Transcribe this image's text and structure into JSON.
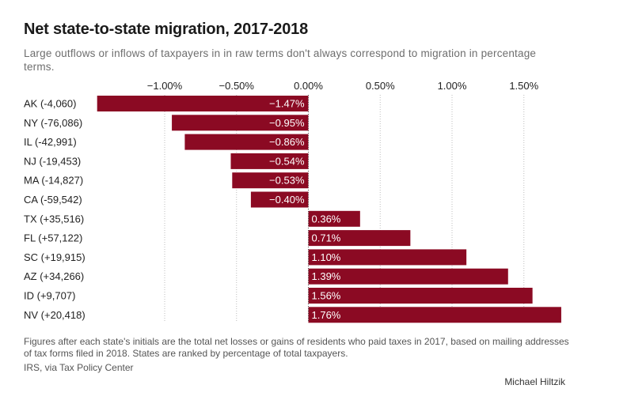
{
  "title": "Net state-to-state migration, 2017-2018",
  "subtitle": "Large outflows or inflows of taxpayers in in raw terms don't always correspond to migration in percentage terms.",
  "note": "Figures after each state's initials are the total net losses or gains of residents who paid taxes in 2017, based on mailing addresses of tax forms filed in 2018. States are ranked by percentage of total taxpayers.",
  "source": "IRS, via Tax Policy Center",
  "credit": "Michael Hiltzik",
  "colors": {
    "bar": "#8b0a23",
    "grid": "#bdbdbd",
    "bar_label": "#ffffff"
  },
  "chart_data": {
    "type": "bar",
    "orientation": "horizontal",
    "categories": [
      "AK (-4,060)",
      "NY (-76,086)",
      "IL (-42,991)",
      "NJ (-19,453)",
      "MA (-14,827)",
      "CA (-59,542)",
      "TX (+35,516)",
      "FL (+57,122)",
      "SC (+19,915)",
      "AZ (+34,266)",
      "ID (+9,707)",
      "NV (+20,418)"
    ],
    "values": [
      -1.47,
      -0.95,
      -0.86,
      -0.54,
      -0.53,
      -0.4,
      0.36,
      0.71,
      1.1,
      1.39,
      1.56,
      1.76
    ],
    "value_labels": [
      "−1.47%",
      "−0.95%",
      "−0.86%",
      "−0.54%",
      "−0.53%",
      "−0.40%",
      "0.36%",
      "0.71%",
      "1.10%",
      "1.39%",
      "1.56%",
      "1.76%"
    ],
    "ticks": [
      -1.0,
      -0.5,
      0.0,
      0.5,
      1.0,
      1.5
    ],
    "tick_labels": [
      "−1.00%",
      "−0.50%",
      "0.00%",
      "0.50%",
      "1.00%",
      "1.50%"
    ],
    "xlim": [
      -1.5,
      1.8
    ],
    "grid": true,
    "axis_position": "top"
  }
}
